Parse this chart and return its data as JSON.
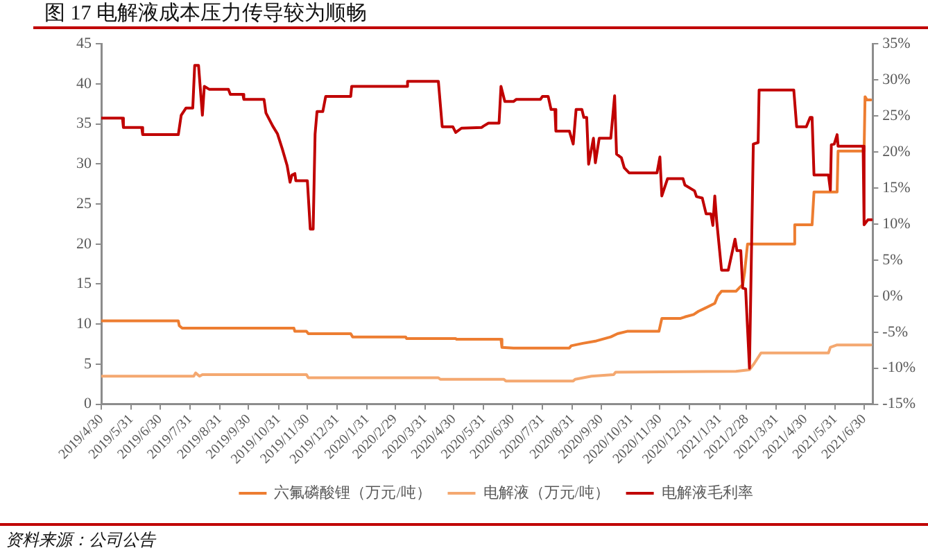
{
  "chart_data": {
    "type": "line",
    "title": "图 17 电解液成本压力传导较为顺畅",
    "annotations": [
      "资料来源：公司公告"
    ],
    "xlim": [
      "2019-04-30",
      "2021-07-09"
    ],
    "xticks": [
      {
        "value": "2019-04-30",
        "label": "2019/4/30"
      },
      {
        "value": "2019-05-31",
        "label": "2019/5/31"
      },
      {
        "value": "2019-06-30",
        "label": "2019/6/30"
      },
      {
        "value": "2019-07-31",
        "label": "2019/7/31"
      },
      {
        "value": "2019-08-31",
        "label": "2019/8/31"
      },
      {
        "value": "2019-09-30",
        "label": "2019/9/30"
      },
      {
        "value": "2019-10-31",
        "label": "2019/10/31"
      },
      {
        "value": "2019-11-30",
        "label": "2019/11/30"
      },
      {
        "value": "2019-12-31",
        "label": "2019/12/31"
      },
      {
        "value": "2020-01-31",
        "label": "2020/1/31"
      },
      {
        "value": "2020-02-29",
        "label": "2020/2/29"
      },
      {
        "value": "2020-03-31",
        "label": "2020/3/31"
      },
      {
        "value": "2020-04-30",
        "label": "2020/4/30"
      },
      {
        "value": "2020-05-31",
        "label": "2020/5/31"
      },
      {
        "value": "2020-06-30",
        "label": "2020/6/30"
      },
      {
        "value": "2020-07-31",
        "label": "2020/7/31"
      },
      {
        "value": "2020-08-31",
        "label": "2020/8/31"
      },
      {
        "value": "2020-09-30",
        "label": "2020/9/30"
      },
      {
        "value": "2020-10-31",
        "label": "2020/10/31"
      },
      {
        "value": "2020-11-30",
        "label": "2020/11/30"
      },
      {
        "value": "2020-12-31",
        "label": "2020/12/31"
      },
      {
        "value": "2021-01-31",
        "label": "2021/1/31"
      },
      {
        "value": "2021-02-28",
        "label": "2021/2/28"
      },
      {
        "value": "2021-03-31",
        "label": "2021/3/31"
      },
      {
        "value": "2021-04-30",
        "label": "2021/4/30"
      },
      {
        "value": "2021-05-31",
        "label": "2021/5/31"
      },
      {
        "value": "2021-06-30",
        "label": "2021/6/30"
      }
    ],
    "ylim": [
      0,
      45
    ],
    "yticks": [
      0,
      5,
      10,
      15,
      20,
      25,
      30,
      35,
      40,
      45
    ],
    "y2lim": [
      -15,
      35
    ],
    "y2ticks": [
      {
        "value": -15,
        "label": "-15%"
      },
      {
        "value": -10,
        "label": "-10%"
      },
      {
        "value": -5,
        "label": "-5%"
      },
      {
        "value": 0,
        "label": "0%"
      },
      {
        "value": 5,
        "label": "5%"
      },
      {
        "value": 10,
        "label": "10%"
      },
      {
        "value": 15,
        "label": "15%"
      },
      {
        "value": 20,
        "label": "20%"
      },
      {
        "value": 25,
        "label": "25%"
      },
      {
        "value": 30,
        "label": "30%"
      },
      {
        "value": 35,
        "label": "35%"
      }
    ],
    "grid": false,
    "legend": "bottom",
    "marker": "none",
    "series": [
      {
        "name": "六氟磷酸锂（万元/吨）",
        "color": "#ed7d31",
        "x": [
          "2019-04-30",
          "2019-07-19",
          "2019-07-20",
          "2019-07-23",
          "2019-11-16",
          "2019-11-17",
          "2019-11-29",
          "2019-12-01",
          "2020-01-14",
          "2020-01-16",
          "2020-03-11",
          "2020-03-12",
          "2020-05-02",
          "2020-05-03",
          "2020-06-18",
          "2020-06-19",
          "2020-07-01",
          "2020-08-28",
          "2020-08-30",
          "2020-09-11",
          "2020-09-25",
          "2020-10-10",
          "2020-10-17",
          "2020-10-27",
          "2020-11-29",
          "2020-12-02",
          "2020-12-21",
          "2020-12-26",
          "2021-01-04",
          "2021-01-09",
          "2021-01-16",
          "2021-01-26",
          "2021-01-29",
          "2021-02-02",
          "2021-02-17",
          "2021-02-21",
          "2021-02-24",
          "2021-02-26",
          "2021-03-01",
          "2021-04-18",
          "2021-04-19",
          "2021-05-07",
          "2021-05-09",
          "2021-06-02",
          "2021-06-03",
          "2021-06-30",
          "2021-07-01",
          "2021-07-03",
          "2021-07-07"
        ],
        "values": [
          10.4,
          10.4,
          9.8,
          9.5,
          9.5,
          9.1,
          9.1,
          8.8,
          8.8,
          8.4,
          8.4,
          8.2,
          8.2,
          8.1,
          8.1,
          7.1,
          7.0,
          7.0,
          7.3,
          7.6,
          7.9,
          8.4,
          8.8,
          9.1,
          9.1,
          10.7,
          10.7,
          10.9,
          11.2,
          11.6,
          12.0,
          12.6,
          13.5,
          14.1,
          14.1,
          14.6,
          14.9,
          16.5,
          20.0,
          20.0,
          22.4,
          22.4,
          26.5,
          26.5,
          31.6,
          31.6,
          38.4,
          38.0,
          38.0
        ]
      },
      {
        "name": "电解液（万元/吨）",
        "color": "#f4a870",
        "x": [
          "2019-04-30",
          "2019-08-04",
          "2019-08-06",
          "2019-08-10",
          "2019-08-13",
          "2019-11-29",
          "2019-12-01",
          "2020-04-14",
          "2020-04-16",
          "2020-06-21",
          "2020-06-23",
          "2020-09-01",
          "2020-09-03",
          "2020-09-20",
          "2020-10-13",
          "2020-10-15",
          "2021-02-17",
          "2021-03-03",
          "2021-03-08",
          "2021-03-15",
          "2021-05-24",
          "2021-05-26",
          "2021-06-02",
          "2021-07-07"
        ],
        "values": [
          3.5,
          3.5,
          3.9,
          3.5,
          3.7,
          3.7,
          3.3,
          3.3,
          3.1,
          3.1,
          2.9,
          2.9,
          3.1,
          3.5,
          3.7,
          4.0,
          4.1,
          4.3,
          5.1,
          6.4,
          6.4,
          7.1,
          7.4,
          7.4
        ]
      },
      {
        "name": "电解液毛利率",
        "color": "#c00000",
        "axis": "y2",
        "x": [
          "2019-04-30",
          "2019-05-22",
          "2019-05-23",
          "2019-06-11",
          "2019-06-12",
          "2019-07-19",
          "2019-07-22",
          "2019-07-27",
          "2019-08-03",
          "2019-08-05",
          "2019-08-09",
          "2019-08-13",
          "2019-08-15",
          "2019-08-20",
          "2019-09-09",
          "2019-09-11",
          "2019-09-24",
          "2019-09-25",
          "2019-10-16",
          "2019-10-18",
          "2019-10-25",
          "2019-10-30",
          "2019-11-04",
          "2019-11-09",
          "2019-11-12",
          "2019-11-14",
          "2019-11-17",
          "2019-11-18",
          "2019-11-30",
          "2019-12-03",
          "2019-12-06",
          "2019-12-08",
          "2019-12-10",
          "2019-12-16",
          "2019-12-19",
          "2020-01-14",
          "2020-01-15",
          "2020-03-12",
          "2020-03-13",
          "2020-04-14",
          "2020-04-18",
          "2020-04-29",
          "2020-05-02",
          "2020-05-08",
          "2020-05-29",
          "2020-05-31",
          "2020-06-05",
          "2020-06-16",
          "2020-06-18",
          "2020-06-22",
          "2020-07-01",
          "2020-07-04",
          "2020-07-29",
          "2020-07-31",
          "2020-08-06",
          "2020-08-09",
          "2020-08-13",
          "2020-08-14",
          "2020-08-28",
          "2020-09-01",
          "2020-09-04",
          "2020-09-10",
          "2020-09-12",
          "2020-09-15",
          "2020-09-17",
          "2020-09-22",
          "2020-09-24",
          "2020-09-28",
          "2020-10-10",
          "2020-10-14",
          "2020-10-16",
          "2020-10-21",
          "2020-10-24",
          "2020-10-29",
          "2020-11-27",
          "2020-11-30",
          "2020-12-02",
          "2020-12-08",
          "2020-12-24",
          "2020-12-26",
          "2021-01-05",
          "2021-01-07",
          "2021-01-13",
          "2021-01-17",
          "2021-01-22",
          "2021-01-24",
          "2021-01-26",
          "2021-01-28",
          "2021-02-02",
          "2021-02-09",
          "2021-02-16",
          "2021-02-18",
          "2021-02-22",
          "2021-02-24",
          "2021-02-27",
          "2021-03-03",
          "2021-03-07",
          "2021-03-12",
          "2021-03-13",
          "2021-04-18",
          "2021-04-21",
          "2021-05-01",
          "2021-05-05",
          "2021-05-07",
          "2021-05-09",
          "2021-05-24",
          "2021-05-26",
          "2021-05-27",
          "2021-05-30",
          "2021-06-02",
          "2021-06-03",
          "2021-06-29",
          "2021-06-30",
          "2021-07-04",
          "2021-07-08"
        ],
        "values": [
          24.7,
          24.7,
          23.4,
          23.4,
          22.4,
          22.4,
          25.1,
          26.1,
          26.1,
          32.0,
          32.0,
          25.1,
          29.1,
          28.7,
          28.7,
          28.0,
          28.0,
          27.3,
          27.3,
          25.4,
          23.6,
          22.5,
          20.4,
          18.1,
          15.8,
          16.8,
          17.0,
          16.0,
          16.0,
          9.3,
          9.3,
          22.5,
          25.6,
          25.6,
          27.7,
          27.7,
          29.1,
          29.1,
          29.8,
          29.8,
          23.5,
          23.5,
          22.7,
          23.3,
          23.4,
          23.6,
          24.0,
          24.0,
          29.1,
          27.0,
          27.0,
          27.3,
          27.3,
          27.7,
          27.7,
          25.9,
          25.9,
          22.9,
          22.9,
          21.1,
          25.9,
          25.9,
          24.8,
          24.8,
          18.3,
          21.9,
          18.5,
          21.9,
          21.9,
          27.8,
          19.7,
          19.2,
          17.8,
          17.1,
          17.1,
          19.3,
          13.9,
          16.3,
          16.3,
          15.4,
          14.6,
          13.8,
          13.6,
          11.4,
          11.4,
          9.8,
          13.9,
          10.4,
          3.6,
          3.6,
          7.9,
          6.3,
          6.3,
          1.1,
          1.0,
          -10.0,
          21.1,
          21.3,
          28.6,
          28.6,
          23.5,
          23.5,
          24.8,
          24.8,
          16.8,
          16.8,
          14.7,
          21.0,
          21.1,
          22.4,
          20.8,
          20.8,
          9.9,
          10.6,
          10.6
        ]
      }
    ]
  }
}
